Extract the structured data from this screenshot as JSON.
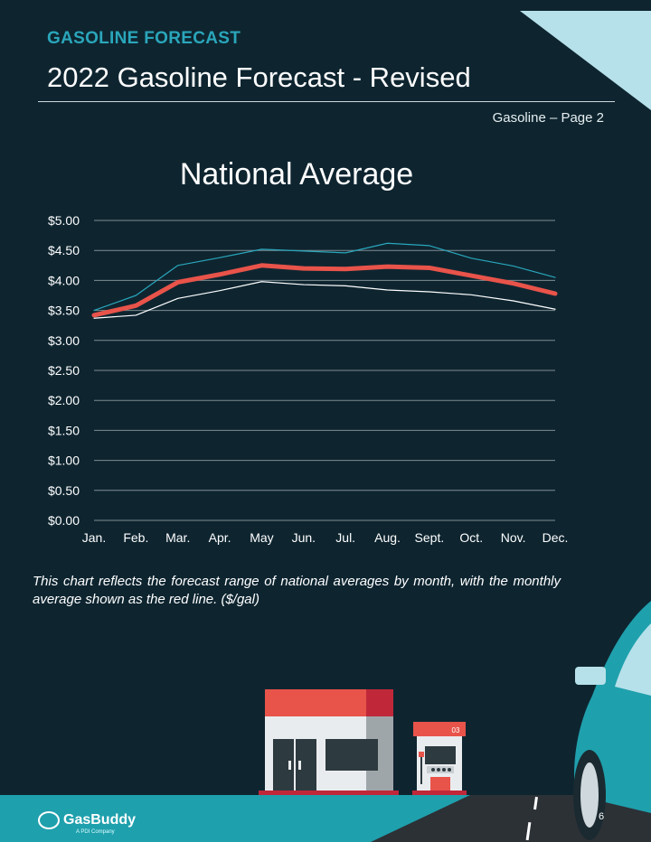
{
  "header": {
    "kicker": "GASOLINE FORECAST",
    "title": "2022 Gasoline Forecast - Revised",
    "page_label": "Gasoline – Page 2"
  },
  "chart_data": {
    "type": "line",
    "title": "National Average",
    "categories": [
      "Jan.",
      "Feb.",
      "Mar.",
      "Apr.",
      "May",
      "Jun.",
      "Jul.",
      "Aug.",
      "Sept.",
      "Oct.",
      "Nov.",
      "Dec."
    ],
    "y_ticks": [
      "$0.00",
      "$0.50",
      "$1.00",
      "$1.50",
      "$2.00",
      "$2.50",
      "$3.00",
      "$3.50",
      "$4.00",
      "$4.50",
      "$5.00"
    ],
    "ylim": [
      0,
      5
    ],
    "grid": true,
    "series": [
      {
        "role": "high",
        "color": "#2aa6bb",
        "values": [
          3.5,
          3.75,
          4.25,
          4.38,
          4.52,
          4.49,
          4.46,
          4.62,
          4.58,
          4.37,
          4.24,
          4.05
        ]
      },
      {
        "role": "average",
        "color": "#e8534a",
        "values": [
          3.42,
          3.58,
          3.97,
          4.1,
          4.25,
          4.2,
          4.19,
          4.23,
          4.21,
          4.08,
          3.95,
          3.78
        ]
      },
      {
        "role": "low",
        "color": "#ffffff",
        "values": [
          3.37,
          3.42,
          3.7,
          3.83,
          3.98,
          3.93,
          3.91,
          3.84,
          3.81,
          3.76,
          3.66,
          3.52
        ]
      }
    ]
  },
  "caption": "This chart reflects the forecast range of national averages by month, with the monthly average shown as the red line. ($/gal)",
  "illustration": {
    "pump_label": "03"
  },
  "footer": {
    "brand": "GasBuddy",
    "brand_sub": "A PDI Company",
    "page_number": "6"
  }
}
